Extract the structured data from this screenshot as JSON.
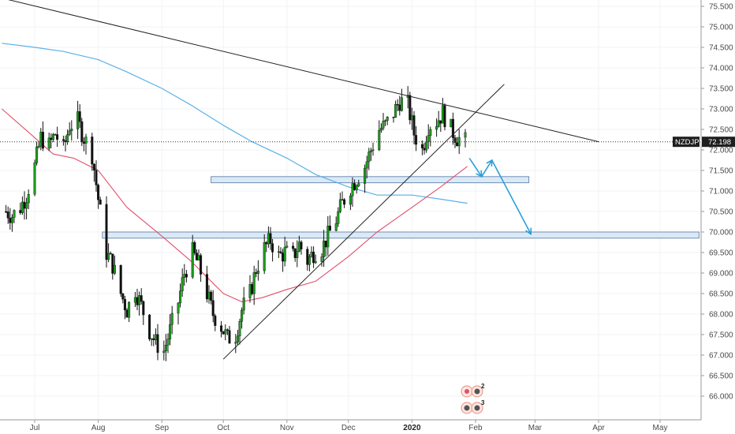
{
  "chart_data": {
    "type": "candlestick",
    "symbol": "NZDJPY",
    "last_price": "72.198",
    "y_ticks": [
      "75.500",
      "75.000",
      "74.500",
      "74.000",
      "73.500",
      "73.000",
      "72.500",
      "72.000",
      "71.500",
      "71.000",
      "70.500",
      "70.000",
      "69.500",
      "69.000",
      "68.500",
      "68.000",
      "67.500",
      "67.000",
      "66.500",
      "66.000"
    ],
    "x_ticks": [
      {
        "label": "Jul",
        "date": "2019-07-01"
      },
      {
        "label": "Aug",
        "date": "2019-08-01"
      },
      {
        "label": "Sep",
        "date": "2019-09-01"
      },
      {
        "label": "Oct",
        "date": "2019-10-01"
      },
      {
        "label": "Nov",
        "date": "2019-11-01"
      },
      {
        "label": "Dec",
        "date": "2019-12-01"
      },
      {
        "label": "2020",
        "date": "2020-01-01",
        "bold": true
      },
      {
        "label": "Feb",
        "date": "2020-02-01"
      },
      {
        "label": "Mar",
        "date": "2020-03-01"
      },
      {
        "label": "Apr",
        "date": "2020-04-01"
      },
      {
        "label": "May",
        "date": "2020-05-01"
      }
    ],
    "ylim": [
      65.7,
      75.7
    ],
    "colors": {
      "up": "#1a9e1a",
      "down": "#111111",
      "ma_fast": "#e0506a",
      "ma_slow": "#5ab0e8",
      "arrow": "#2b9fd8",
      "zone_fill": "#dbe9f6",
      "zone_stroke": "#6f8fb3",
      "trendline": "#222222"
    },
    "close_path": [
      [
        "2019-06-17",
        70.5
      ],
      [
        "2019-06-20",
        70.4
      ],
      [
        "2019-06-24",
        70.6
      ],
      [
        "2019-06-27",
        70.9
      ],
      [
        "2019-07-01",
        71.6
      ],
      [
        "2019-07-04",
        72.3
      ],
      [
        "2019-07-08",
        72.1
      ],
      [
        "2019-07-11",
        72.4
      ],
      [
        "2019-07-15",
        72.0
      ],
      [
        "2019-07-18",
        72.6
      ],
      [
        "2019-07-22",
        72.7
      ],
      [
        "2019-07-25",
        72.3
      ],
      [
        "2019-07-29",
        71.9
      ],
      [
        "2019-08-01",
        70.8
      ],
      [
        "2019-08-05",
        69.5
      ],
      [
        "2019-08-08",
        69.2
      ],
      [
        "2019-08-12",
        68.5
      ],
      [
        "2019-08-15",
        68.1
      ],
      [
        "2019-08-19",
        68.6
      ],
      [
        "2019-08-22",
        68.2
      ],
      [
        "2019-08-26",
        67.6
      ],
      [
        "2019-08-29",
        67.3
      ],
      [
        "2019-09-02",
        67.1
      ],
      [
        "2019-09-05",
        67.6
      ],
      [
        "2019-09-09",
        68.3
      ],
      [
        "2019-09-12",
        69.0
      ],
      [
        "2019-09-16",
        69.5
      ],
      [
        "2019-09-19",
        69.2
      ],
      [
        "2019-09-23",
        68.5
      ],
      [
        "2019-09-26",
        68.0
      ],
      [
        "2019-09-30",
        67.7
      ],
      [
        "2019-10-03",
        67.4
      ],
      [
        "2019-10-07",
        67.5
      ],
      [
        "2019-10-10",
        68.1
      ],
      [
        "2019-10-14",
        68.5
      ],
      [
        "2019-10-17",
        69.1
      ],
      [
        "2019-10-21",
        69.6
      ],
      [
        "2019-10-24",
        69.8
      ],
      [
        "2019-10-28",
        69.4
      ],
      [
        "2019-10-31",
        69.5
      ],
      [
        "2019-11-04",
        69.4
      ],
      [
        "2019-11-07",
        69.7
      ],
      [
        "2019-11-11",
        69.3
      ],
      [
        "2019-11-14",
        69.5
      ],
      [
        "2019-11-18",
        69.6
      ],
      [
        "2019-11-21",
        69.9
      ],
      [
        "2019-11-25",
        70.3
      ],
      [
        "2019-11-28",
        70.7
      ],
      [
        "2019-12-02",
        71.1
      ],
      [
        "2019-12-05",
        71.3
      ],
      [
        "2019-12-09",
        71.6
      ],
      [
        "2019-12-12",
        72.0
      ],
      [
        "2019-12-16",
        72.5
      ],
      [
        "2019-12-19",
        72.6
      ],
      [
        "2019-12-23",
        72.9
      ],
      [
        "2019-12-26",
        73.2
      ],
      [
        "2019-12-30",
        73.1
      ],
      [
        "2020-01-02",
        72.4
      ],
      [
        "2020-01-06",
        72.0
      ],
      [
        "2020-01-09",
        72.6
      ],
      [
        "2020-01-13",
        72.7
      ],
      [
        "2020-01-16",
        72.9
      ],
      [
        "2020-01-20",
        72.5
      ],
      [
        "2020-01-23",
        72.3
      ],
      [
        "2020-01-27",
        72.2
      ]
    ],
    "ma_fast": [
      [
        "2019-06-15",
        73.0
      ],
      [
        "2019-07-01",
        72.3
      ],
      [
        "2019-07-10",
        71.9
      ],
      [
        "2019-07-20",
        71.8
      ],
      [
        "2019-08-01",
        71.5
      ],
      [
        "2019-08-15",
        70.6
      ],
      [
        "2019-09-01",
        69.9
      ],
      [
        "2019-09-15",
        69.3
      ],
      [
        "2019-10-01",
        68.5
      ],
      [
        "2019-10-10",
        68.3
      ],
      [
        "2019-10-20",
        68.4
      ],
      [
        "2019-11-01",
        68.6
      ],
      [
        "2019-11-15",
        68.8
      ],
      [
        "2019-12-01",
        69.4
      ],
      [
        "2019-12-15",
        70.0
      ],
      [
        "2020-01-01",
        70.6
      ],
      [
        "2020-01-15",
        71.1
      ],
      [
        "2020-01-28",
        71.6
      ]
    ],
    "ma_slow": [
      [
        "2019-06-15",
        74.6
      ],
      [
        "2019-07-01",
        74.5
      ],
      [
        "2019-07-15",
        74.4
      ],
      [
        "2019-08-01",
        74.2
      ],
      [
        "2019-08-15",
        73.9
      ],
      [
        "2019-09-01",
        73.5
      ],
      [
        "2019-09-15",
        73.1
      ],
      [
        "2019-10-01",
        72.6
      ],
      [
        "2019-10-15",
        72.2
      ],
      [
        "2019-11-01",
        71.8
      ],
      [
        "2019-11-15",
        71.4
      ],
      [
        "2019-12-01",
        71.1
      ],
      [
        "2019-12-15",
        70.9
      ],
      [
        "2020-01-01",
        70.9
      ],
      [
        "2020-01-15",
        70.8
      ],
      [
        "2020-01-28",
        70.7
      ]
    ],
    "drawings": {
      "resistance_trendline": [
        [
          "2019-06-15",
          75.7
        ],
        [
          "2020-04-01",
          72.2
        ]
      ],
      "support_trendline": [
        [
          "2019-10-01",
          66.9
        ],
        [
          "2020-02-15",
          73.6
        ]
      ],
      "zones": [
        {
          "start": "2019-09-25",
          "end": "2020-02-27",
          "low": 71.2,
          "high": 71.35
        },
        {
          "start": "2019-08-03",
          "end": "2020-05-20",
          "low": 69.85,
          "high": 70.0
        }
      ],
      "forecast_arrow": [
        [
          "2020-01-29",
          71.8
        ],
        [
          "2020-02-04",
          71.35
        ],
        [
          "2020-02-09",
          71.75
        ],
        [
          "2020-02-28",
          69.95
        ]
      ]
    }
  }
}
